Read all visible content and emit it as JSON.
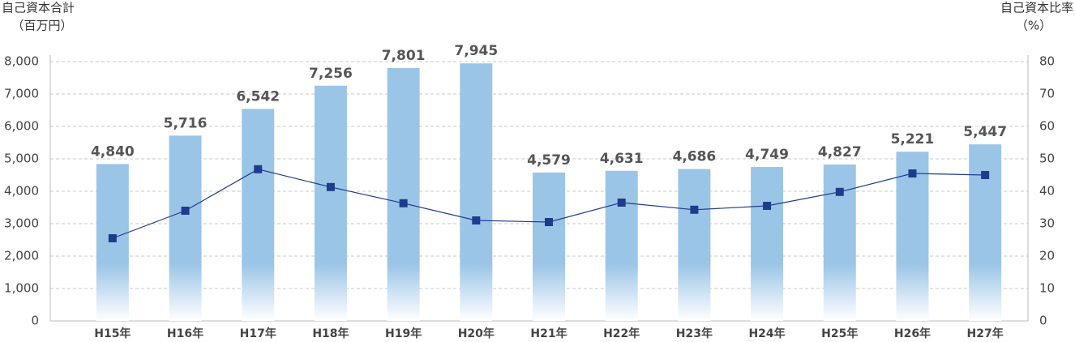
{
  "chart_data": {
    "type": "bar-line",
    "ylabel": [
      "自己資本合計",
      "（百万円）"
    ],
    "y2label": [
      "自己資本比率",
      "（%）"
    ],
    "categories": [
      "H15年",
      "H16年",
      "H17年",
      "H18年",
      "H19年",
      "H20年",
      "H21年",
      "H22年",
      "H23年",
      "H24年",
      "H25年",
      "H26年",
      "H27年"
    ],
    "series": [
      {
        "type": "bar",
        "color": "#9bc5e7",
        "values": [
          4840,
          5716,
          6542,
          7256,
          7801,
          7945,
          4579,
          4631,
          4686,
          4749,
          4827,
          5221,
          5447
        ],
        "value_labels": [
          "4,840",
          "5,716",
          "6,542",
          "7,256",
          "7,801",
          "7,945",
          "4,579",
          "4,631",
          "4,686",
          "4,749",
          "4,827",
          "5,221",
          "5,447"
        ]
      },
      {
        "type": "line",
        "axis": "y2",
        "color": "#1e3c8c",
        "values": [
          25.5,
          34,
          46.8,
          41.3,
          36.3,
          31,
          30.5,
          36.5,
          34.3,
          35.5,
          39.8,
          45.5,
          45
        ]
      }
    ],
    "ylim": [
      0,
      8000
    ],
    "yticks": [
      0,
      {
        "value": 1000,
        "label": "1,000"
      },
      {
        "value": 2000,
        "label": "2,000"
      },
      {
        "value": 3000,
        "label": "3,000"
      },
      {
        "value": 4000,
        "label": "4,000"
      },
      {
        "value": 5000,
        "label": "5,000"
      },
      {
        "value": 6000,
        "label": "6,000"
      },
      {
        "value": 7000,
        "label": "7,000"
      },
      {
        "value": 8000,
        "label": "8,000"
      }
    ],
    "y2lim": [
      0,
      80
    ],
    "y2ticks": [
      0,
      10,
      20,
      30,
      40,
      50,
      60,
      70,
      80
    ],
    "grid": true
  }
}
